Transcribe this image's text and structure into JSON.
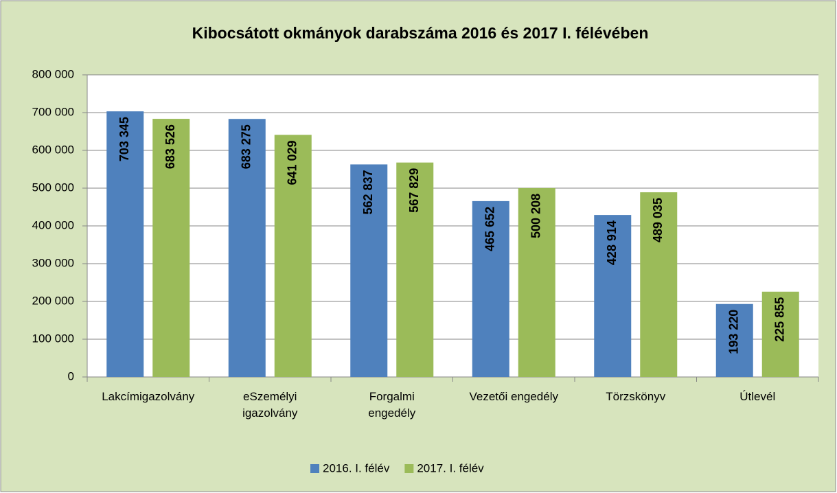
{
  "chart_data": {
    "type": "bar",
    "title": "Kibocsátott okmányok darabszáma 2016 és 2017 I. félévében",
    "categories": [
      "Lakcímigazolvány",
      "eSzemélyi\nigazolvány",
      "Forgalmi\nengedély",
      "Vezetői engedély",
      "Törzskönyv",
      "Útlevél"
    ],
    "series": [
      {
        "name": "2016. I. félév",
        "color": "#4f81bd",
        "values": [
          703345,
          683275,
          562837,
          465652,
          428914,
          193220
        ],
        "value_labels": [
          "703 345",
          "683 275",
          "562 837",
          "465 652",
          "428 914",
          "193 220"
        ]
      },
      {
        "name": "2017. I. félév",
        "color": "#9bbb59",
        "values": [
          683526,
          641029,
          567829,
          500208,
          489035,
          225855
        ],
        "value_labels": [
          "683 526",
          "641 029",
          "567 829",
          "500 208",
          "489 035",
          "225 855"
        ]
      }
    ],
    "ylim": [
      0,
      800000
    ],
    "yticks": [
      0,
      {
        "value": 100000,
        "label": "100 000"
      },
      {
        "value": 200000,
        "label": "200 000"
      },
      {
        "value": 300000,
        "label": "300 000"
      },
      {
        "value": 400000,
        "label": "400 000"
      },
      {
        "value": 500000,
        "label": "500 000"
      },
      {
        "value": 600000,
        "label": "600 000"
      },
      {
        "value": 700000,
        "label": "700 000"
      },
      {
        "value": 800000,
        "label": "800 000"
      }
    ],
    "grid": true
  }
}
